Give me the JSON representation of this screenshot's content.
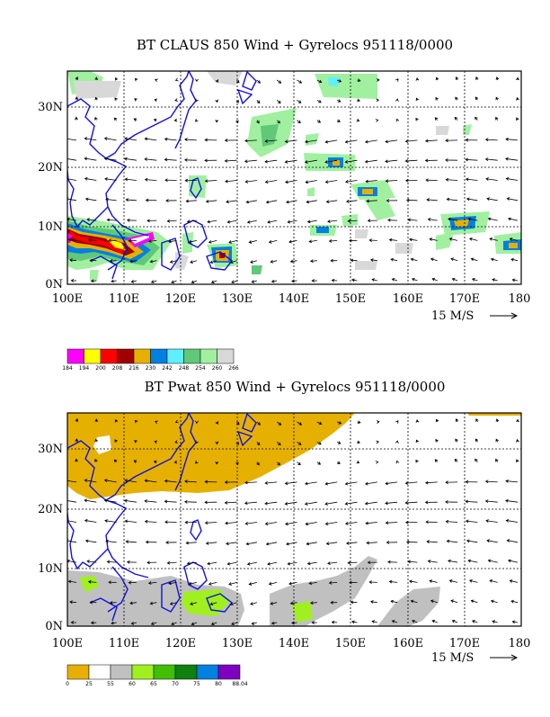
{
  "chart_data": [
    {
      "type": "heatmap",
      "title": "BT CLAUS 850 Wind + Gyrelocs 951118/0000",
      "x_ticks": [
        "100E",
        "110E",
        "120E",
        "130E",
        "140E",
        "150E",
        "160E",
        "170E",
        "180"
      ],
      "y_ticks": [
        "0N",
        "10N",
        "20N",
        "30N"
      ],
      "xlim": [
        100,
        180
      ],
      "ylim": [
        0,
        37
      ],
      "vector_key": "15 M/S",
      "colorbar": {
        "labels": [
          "184",
          "194",
          "200",
          "208",
          "216",
          "230",
          "242",
          "248",
          "254",
          "260",
          "266"
        ],
        "colors": [
          "#ff00ff",
          "#ffff00",
          "#ff0000",
          "#a00000",
          "#e6b000",
          "#0080e0",
          "#5ff0ff",
          "#60c878",
          "#a0f0a0",
          "#d8d8d8"
        ]
      },
      "features": [
        {
          "lon": 104,
          "lat": 7,
          "level": 0
        },
        {
          "lon": 108,
          "lat": 7,
          "level": 2
        },
        {
          "lon": 112,
          "lat": 6.5,
          "level": 0
        },
        {
          "lon": 101,
          "lat": 8,
          "level": 2
        },
        {
          "lon": 127,
          "lat": 5,
          "level": 4
        },
        {
          "lon": 148,
          "lat": 21,
          "level": 5
        },
        {
          "lon": 153,
          "lat": 15,
          "level": 5
        },
        {
          "lon": 146,
          "lat": 9,
          "level": 4
        },
        {
          "lon": 169,
          "lat": 10,
          "level": 4
        },
        {
          "lon": 179,
          "lat": 6,
          "level": 5
        },
        {
          "lon": 137,
          "lat": 23,
          "level": 8
        },
        {
          "lon": 147,
          "lat": 33,
          "level": 6
        },
        {
          "lon": 105,
          "lat": 35,
          "level": 8
        }
      ]
    },
    {
      "type": "heatmap",
      "title": "BT Pwat 850 Wind + Gyrelocs 951118/0000",
      "x_ticks": [
        "100E",
        "110E",
        "120E",
        "130E",
        "140E",
        "150E",
        "160E",
        "170E",
        "180"
      ],
      "y_ticks": [
        "0N",
        "10N",
        "20N",
        "30N"
      ],
      "xlim": [
        100,
        180
      ],
      "ylim": [
        0,
        37
      ],
      "vector_key": "15 M/S",
      "colorbar": {
        "labels": [
          "0",
          "25",
          "55",
          "60",
          "65",
          "70",
          "75",
          "80",
          "88.04"
        ],
        "colors": [
          "#e6b000",
          "#ffffff",
          "#c0c0c0",
          "#a0f020",
          "#40c000",
          "#108010",
          "#0080e0",
          "#8000c0"
        ]
      }
    }
  ]
}
